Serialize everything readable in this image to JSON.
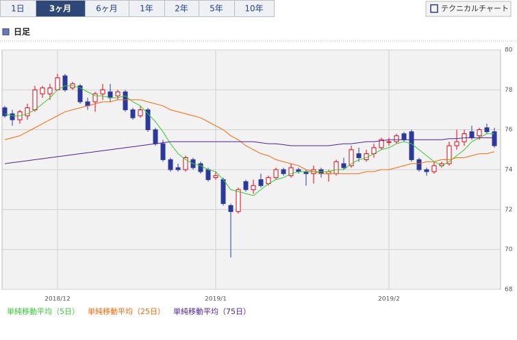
{
  "tabs": [
    "1日",
    "3ヶ月",
    "6ヶ月",
    "1年",
    "2年",
    "5年",
    "10年"
  ],
  "active_tab": 1,
  "button": "テクニカルチャート",
  "section_title": "日足",
  "chart_data": {
    "type": "candlestick",
    "up_color": "#e60012",
    "down_color": "#2b3a9a",
    "ylim": [
      68,
      80
    ],
    "yticks": [
      68,
      70,
      72,
      74,
      76,
      78,
      80
    ],
    "xticks": [
      {
        "value": 7,
        "label": "2018/12"
      },
      {
        "value": 28,
        "label": "2019/1"
      },
      {
        "value": 51,
        "label": "2019/2"
      }
    ],
    "grid": true,
    "open": [
      77.1,
      76.8,
      76.5,
      76.7,
      77.0,
      77.8,
      77.8,
      78.0,
      78.7,
      78.1,
      78.2,
      77.4,
      77.4,
      77.8,
      77.9,
      77.7,
      77.9,
      77.0,
      76.7,
      77.0,
      76.0,
      75.3,
      74.5,
      74.1,
      74.0,
      74.5,
      74.3,
      74.0,
      73.6,
      73.5,
      72.2,
      71.9,
      73.4,
      73.0,
      73.5,
      73.3,
      73.6,
      74.0,
      73.7,
      74.0,
      73.9,
      73.8,
      74.0,
      73.8,
      73.8,
      74.3,
      74.2,
      74.8,
      74.5,
      74.8,
      75.1,
      75.4,
      75.4,
      75.8,
      75.9,
      74.5,
      74.0,
      73.9,
      74.2,
      74.3,
      75.2,
      75.4,
      75.9,
      75.7,
      76.1,
      75.9
    ],
    "high": [
      77.2,
      77.0,
      77.0,
      77.3,
      78.2,
      78.2,
      78.3,
      78.8,
      78.8,
      78.4,
      78.3,
      77.6,
      77.9,
      78.3,
      78.3,
      78.0,
      78.0,
      77.1,
      77.2,
      77.1,
      76.1,
      75.5,
      74.6,
      74.3,
      74.7,
      74.6,
      74.4,
      74.1,
      73.9,
      73.6,
      72.3,
      73.1,
      73.5,
      73.5,
      73.8,
      73.7,
      74.1,
      74.1,
      74.3,
      74.1,
      74.0,
      74.2,
      74.1,
      74.0,
      74.5,
      74.6,
      75.2,
      75.1,
      75.0,
      75.3,
      75.6,
      75.6,
      75.8,
      75.9,
      76.0,
      74.6,
      74.1,
      74.4,
      74.4,
      75.4,
      76.0,
      76.0,
      76.2,
      76.1,
      76.3,
      76.1
    ],
    "low": [
      76.6,
      76.2,
      76.3,
      76.5,
      76.9,
      77.6,
      77.5,
      78.0,
      77.9,
      78.0,
      77.3,
      77.0,
      76.9,
      77.5,
      77.4,
      77.5,
      76.9,
      76.5,
      76.6,
      75.9,
      75.2,
      74.4,
      73.9,
      73.9,
      73.9,
      74.0,
      73.8,
      73.4,
      73.5,
      72.2,
      69.6,
      71.8,
      72.9,
      72.8,
      73.1,
      73.2,
      73.5,
      73.7,
      73.6,
      73.8,
      73.2,
      73.3,
      73.6,
      73.4,
      73.7,
      74.0,
      74.1,
      74.4,
      74.4,
      74.6,
      75.0,
      75.2,
      75.3,
      75.4,
      74.4,
      73.9,
      73.7,
      73.8,
      74.1,
      74.2,
      75.0,
      75.2,
      75.5,
      75.5,
      75.8,
      75.1
    ],
    "close": [
      76.7,
      76.5,
      76.9,
      77.1,
      78.0,
      78.1,
      78.1,
      78.6,
      78.0,
      78.3,
      77.4,
      77.2,
      77.8,
      78.0,
      77.6,
      77.9,
      77.0,
      76.6,
      77.0,
      76.0,
      75.3,
      74.5,
      74.0,
      74.0,
      74.6,
      74.1,
      73.9,
      73.5,
      73.7,
      72.3,
      71.9,
      73.0,
      73.0,
      73.2,
      73.2,
      73.6,
      74.0,
      73.8,
      74.1,
      73.9,
      73.8,
      74.0,
      73.8,
      73.9,
      74.4,
      74.1,
      75.0,
      74.6,
      74.8,
      75.1,
      75.5,
      75.4,
      75.7,
      75.5,
      74.5,
      74.0,
      73.9,
      74.2,
      74.3,
      75.2,
      75.4,
      75.8,
      75.6,
      76.0,
      75.9,
      75.2
    ],
    "series": [
      {
        "name": "単純移動平均（5日）",
        "color": "#33cc33",
        "values": [
          76.8,
          76.7,
          76.7,
          76.8,
          77.0,
          77.3,
          77.6,
          78.0,
          78.2,
          78.2,
          78.1,
          77.9,
          77.7,
          77.7,
          77.6,
          77.6,
          77.7,
          77.4,
          77.2,
          76.8,
          76.4,
          75.9,
          75.3,
          74.8,
          74.5,
          74.3,
          74.2,
          74.0,
          73.9,
          73.5,
          73.0,
          72.9,
          72.8,
          72.7,
          73.0,
          73.3,
          73.5,
          73.6,
          73.8,
          73.9,
          73.9,
          73.9,
          73.9,
          73.9,
          74.0,
          74.0,
          74.3,
          74.5,
          74.6,
          74.8,
          75.0,
          75.1,
          75.3,
          75.4,
          75.3,
          75.0,
          74.7,
          74.4,
          74.2,
          74.4,
          74.7,
          75.0,
          75.4,
          75.6,
          75.8,
          75.8
        ]
      },
      {
        "name": "単純移動平均（25日）",
        "color": "#ff6600",
        "values": [
          75.5,
          75.6,
          75.7,
          75.9,
          76.1,
          76.3,
          76.5,
          76.7,
          76.9,
          77.0,
          77.1,
          77.2,
          77.3,
          77.4,
          77.4,
          77.5,
          77.5,
          77.5,
          77.5,
          77.4,
          77.3,
          77.2,
          77.0,
          76.9,
          76.8,
          76.7,
          76.6,
          76.4,
          76.2,
          76.0,
          75.7,
          75.5,
          75.2,
          75.0,
          74.8,
          74.7,
          74.5,
          74.4,
          74.3,
          74.2,
          74.0,
          73.9,
          73.8,
          73.8,
          73.8,
          73.8,
          73.8,
          73.8,
          73.9,
          73.9,
          74.0,
          74.0,
          74.1,
          74.2,
          74.3,
          74.3,
          74.4,
          74.4,
          74.5,
          74.5,
          74.6,
          74.6,
          74.7,
          74.8,
          74.8,
          74.9
        ]
      },
      {
        "name": "単純移動平均（75日）",
        "color": "#4b1ea0",
        "values": [
          74.3,
          74.35,
          74.4,
          74.45,
          74.5,
          74.55,
          74.6,
          74.65,
          74.7,
          74.75,
          74.8,
          74.85,
          74.9,
          74.95,
          75.0,
          75.05,
          75.1,
          75.15,
          75.2,
          75.25,
          75.3,
          75.35,
          75.4,
          75.4,
          75.4,
          75.4,
          75.4,
          75.4,
          75.4,
          75.4,
          75.4,
          75.4,
          75.4,
          75.4,
          75.35,
          75.3,
          75.3,
          75.25,
          75.2,
          75.2,
          75.2,
          75.2,
          75.2,
          75.2,
          75.25,
          75.3,
          75.3,
          75.35,
          75.4,
          75.4,
          75.45,
          75.5,
          75.5,
          75.5,
          75.5,
          75.5,
          75.5,
          75.5,
          75.5,
          75.55,
          75.55,
          75.6,
          75.6,
          75.6,
          75.6,
          75.6
        ]
      }
    ]
  }
}
